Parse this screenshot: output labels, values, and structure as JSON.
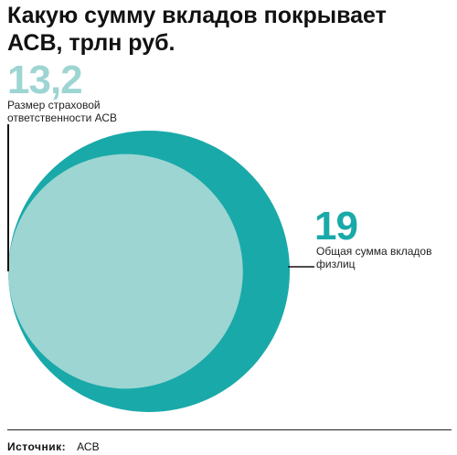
{
  "title": "Какую сумму вкладов покрывает АСВ, трлн руб.",
  "colors": {
    "small_circle": "#9dd5d3",
    "big_circle": "#1aa9a9",
    "leader_lines": "#111111"
  },
  "chart_data": {
    "type": "area",
    "title": "Какую сумму вкладов покрывает АСВ, трлн руб.",
    "unit": "трлн руб.",
    "items": [
      {
        "label": "Размер страховой ответственности АСВ",
        "value": 13.2,
        "value_text": "13,2"
      },
      {
        "label": "Общая сумма вкладов физлиц",
        "value": 19,
        "value_text": "19"
      }
    ]
  },
  "footer": {
    "label": "Источник:",
    "value": "АСВ"
  }
}
